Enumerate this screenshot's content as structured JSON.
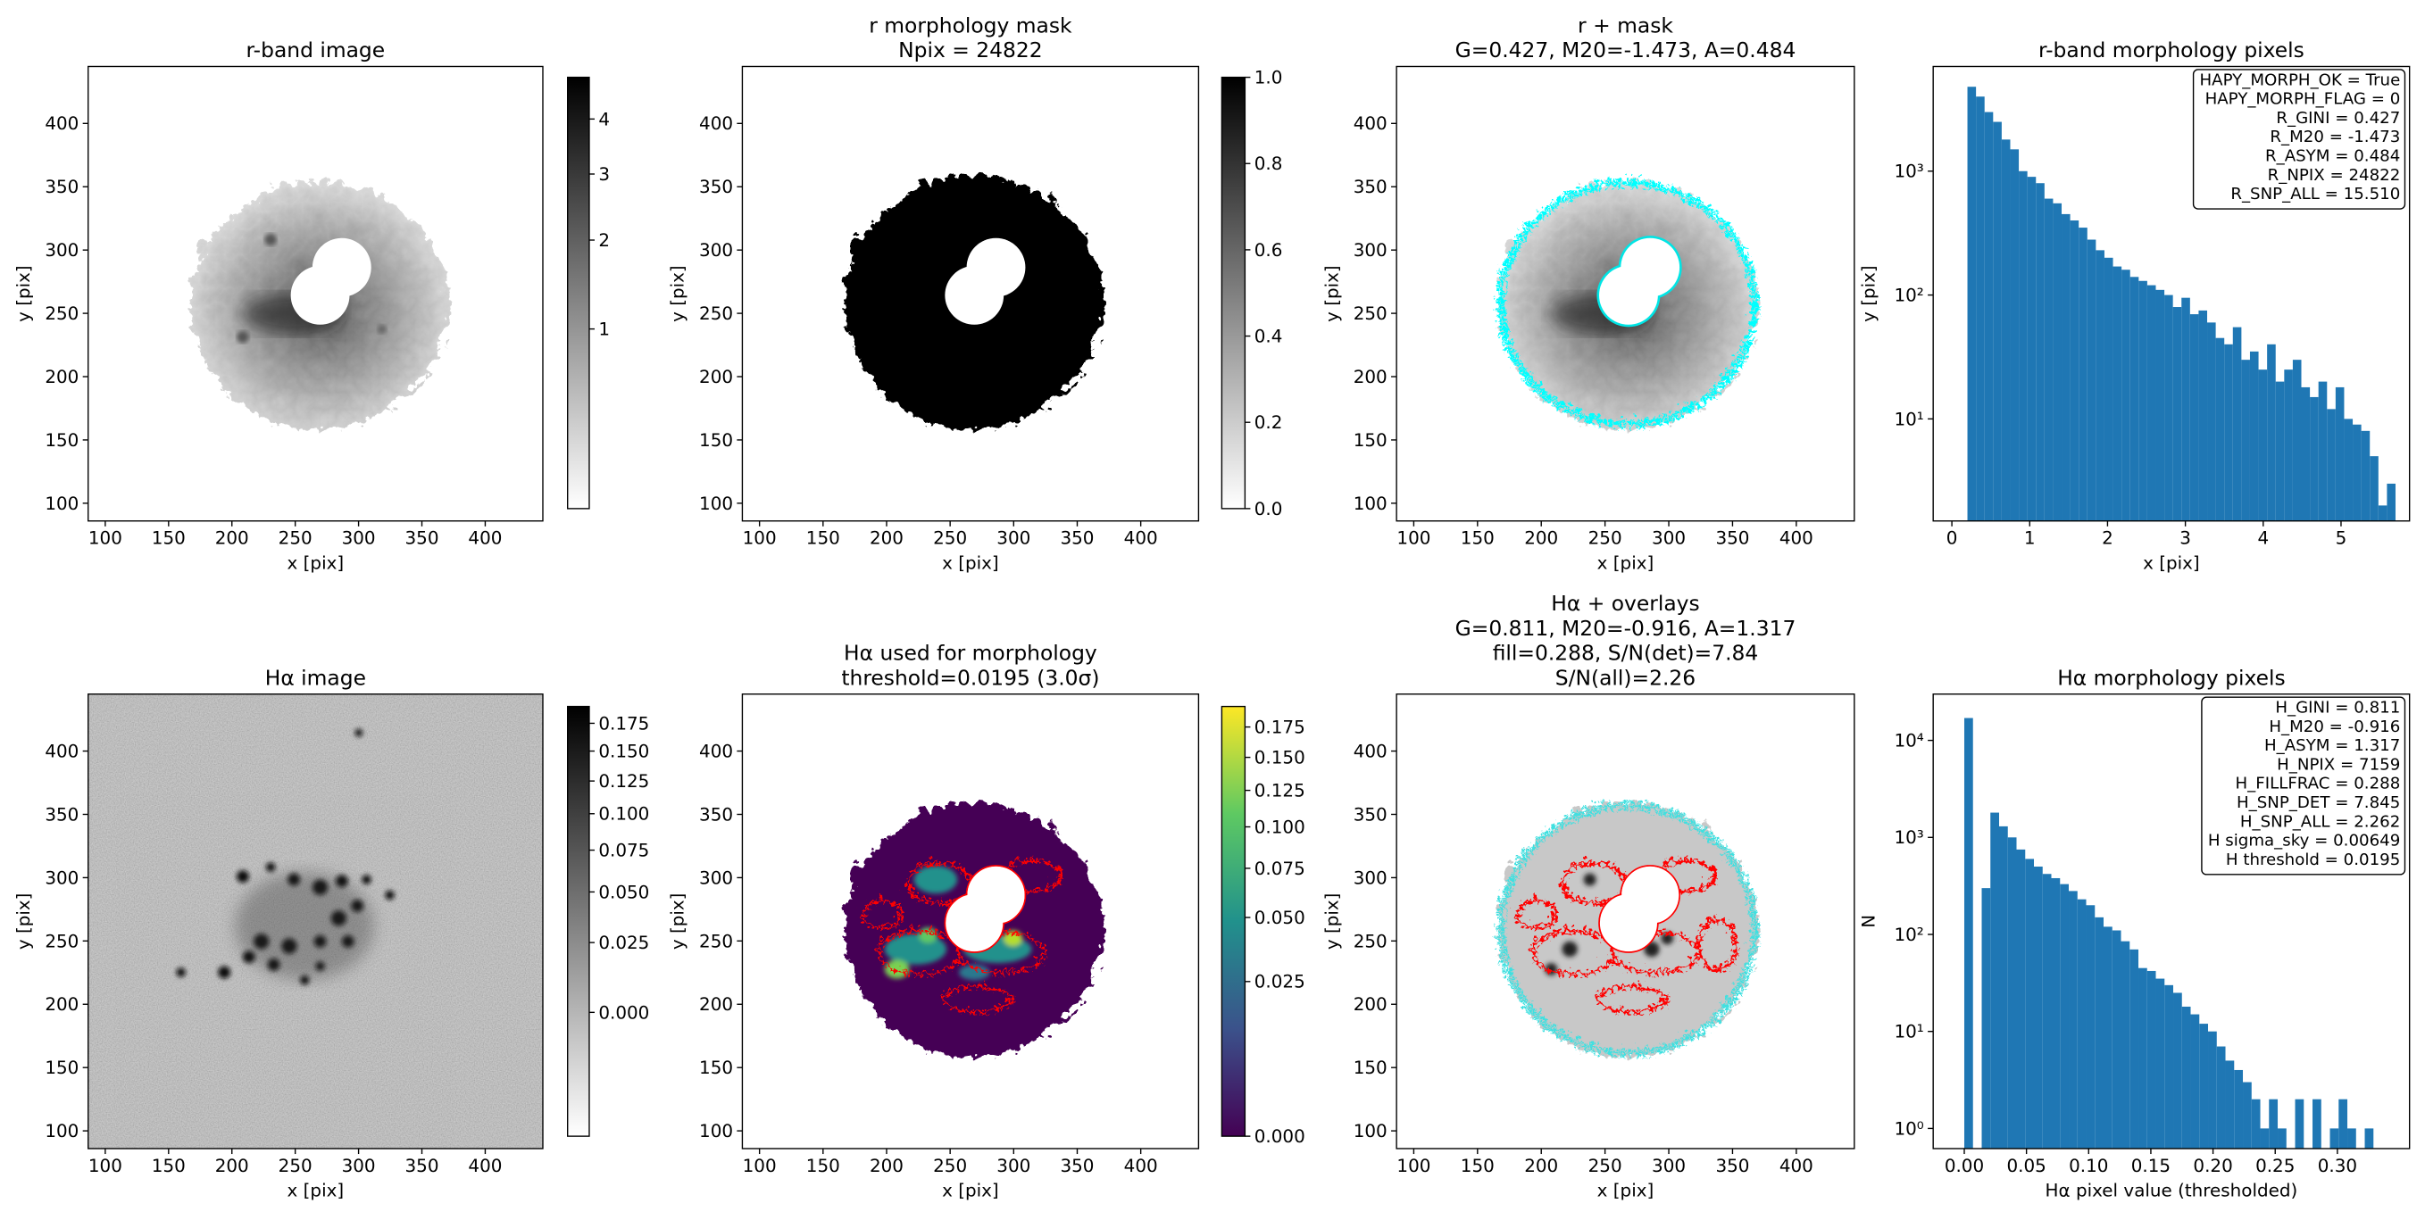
{
  "chart_data": [
    {
      "type": "image",
      "title": [
        "r-band image"
      ],
      "xlabel": "x [pix]",
      "ylabel": "y [pix]",
      "xlim": [
        86.5,
        445.5
      ],
      "ylim": [
        86,
        445
      ],
      "xticks": [
        100,
        150,
        200,
        250,
        300,
        350,
        400
      ],
      "yticks": [
        100,
        150,
        200,
        250,
        300,
        350,
        400
      ],
      "colorbar": {
        "cmap": "gray_r",
        "stretch": "sqrt",
        "lim": [
          0.19,
          4.86
        ],
        "ticks": [
          1,
          2,
          3,
          4
        ]
      }
    },
    {
      "type": "image",
      "title": [
        "r morphology mask",
        "Npix = 24822"
      ],
      "xlabel": "x [pix]",
      "ylabel": "y [pix]",
      "xlim": [
        86.5,
        445.5
      ],
      "ylim": [
        86,
        445
      ],
      "xticks": [
        100,
        150,
        200,
        250,
        300,
        350,
        400
      ],
      "yticks": [
        100,
        150,
        200,
        250,
        300,
        350,
        400
      ],
      "colorbar": {
        "cmap": "gray_r",
        "stretch": "linear",
        "lim": [
          0,
          1
        ],
        "ticks": [
          {
            "value": 0,
            "label": "0.0"
          },
          0.2,
          0.4,
          0.6,
          0.8,
          {
            "value": 1,
            "label": "1.0"
          }
        ]
      }
    },
    {
      "type": "image",
      "title": [
        "r + mask",
        "G=0.427, M20=-1.473, A=0.484"
      ],
      "xlabel": "x [pix]",
      "ylabel": "y [pix]",
      "xlim": [
        86.5,
        445.5
      ],
      "ylim": [
        86,
        445
      ],
      "xticks": [
        100,
        150,
        200,
        250,
        300,
        350,
        400
      ],
      "yticks": [
        100,
        150,
        200,
        250,
        300,
        350,
        400
      ]
    },
    {
      "type": "histogram",
      "title": [
        "r-band morphology pixels"
      ],
      "xlabel": "x [pix]",
      "ylabel": "y [pix]",
      "color": "#1f77b4",
      "ylog": true,
      "xlim": [
        -0.24,
        5.88
      ],
      "xticks": [
        0,
        1,
        2,
        3,
        4,
        5
      ],
      "ylim": [
        1.5,
        7000
      ],
      "yticks": [
        {
          "value": 10,
          "label": "10¹"
        },
        {
          "value": 100,
          "label": "10²"
        },
        {
          "value": 1000,
          "label": "10³"
        }
      ],
      "bins": [
        0.2,
        0.31,
        0.42,
        0.53,
        0.64,
        0.75,
        0.86,
        0.97,
        1.08,
        1.19,
        1.3,
        1.41,
        1.52,
        1.63,
        1.74,
        1.85,
        1.96,
        2.07,
        2.18,
        2.29,
        2.4,
        2.51,
        2.62,
        2.73,
        2.84,
        2.95,
        3.06,
        3.17,
        3.28,
        3.39,
        3.5,
        3.61,
        3.72,
        3.83,
        3.94,
        4.05,
        4.16,
        4.27,
        4.38,
        4.49,
        4.6,
        4.71,
        4.82,
        4.93,
        5.04,
        5.15,
        5.26,
        5.37,
        5.48,
        5.59,
        5.7
      ],
      "values": [
        4800,
        4000,
        3000,
        2500,
        1800,
        1500,
        1000,
        900,
        800,
        600,
        550,
        450,
        400,
        350,
        280,
        230,
        200,
        170,
        160,
        140,
        130,
        120,
        110,
        100,
        80,
        95,
        70,
        75,
        60,
        45,
        40,
        55,
        30,
        35,
        25,
        40,
        20,
        25,
        30,
        18,
        15,
        20,
        12,
        18,
        10,
        9,
        8,
        5,
        2,
        3
      ],
      "annotation": [
        "HAPY_MORPH_OK = True",
        "HAPY_MORPH_FLAG = 0",
        "R_GINI = 0.427",
        "R_M20 = -1.473",
        "R_ASYM = 0.484",
        "R_NPIX = 24822",
        "R_SNP_ALL = 15.510"
      ]
    },
    {
      "type": "image",
      "title": [
        "Hα image"
      ],
      "xlabel": "x [pix]",
      "ylabel": "y [pix]",
      "xlim": [
        86.5,
        445.5
      ],
      "ylim": [
        86,
        445
      ],
      "xticks": [
        100,
        150,
        200,
        250,
        300,
        350,
        400
      ],
      "yticks": [
        100,
        150,
        200,
        250,
        300,
        350,
        400
      ],
      "colorbar": {
        "cmap": "gray_r",
        "stretch": "sqrt",
        "lim": [
          -0.0173,
          0.191
        ],
        "ticks": [
          {
            "value": 0,
            "label": "0.000"
          },
          0.025,
          {
            "value": 0.05,
            "label": "0.050"
          },
          0.075,
          {
            "value": 0.1,
            "label": "0.100"
          },
          0.125,
          {
            "value": 0.15,
            "label": "0.150"
          },
          0.175
        ]
      }
    },
    {
      "type": "image",
      "title": [
        "Hα used for morphology",
        "threshold=0.0195 (3.0σ)"
      ],
      "xlabel": "x [pix]",
      "ylabel": "y [pix]",
      "xlim": [
        86.5,
        445.5
      ],
      "ylim": [
        86,
        445
      ],
      "xticks": [
        100,
        150,
        200,
        250,
        300,
        350,
        400
      ],
      "yticks": [
        100,
        150,
        200,
        250,
        300,
        350,
        400
      ],
      "colorbar": {
        "cmap": "viridis",
        "stretch": "sqrt",
        "lim": [
          0,
          0.193
        ],
        "ticks": [
          {
            "value": 0,
            "label": "0.000"
          },
          0.025,
          {
            "value": 0.05,
            "label": "0.050"
          },
          0.075,
          {
            "value": 0.1,
            "label": "0.100"
          },
          0.125,
          {
            "value": 0.15,
            "label": "0.150"
          },
          0.175
        ]
      }
    },
    {
      "type": "image",
      "title": [
        "Hα + overlays",
        "G=0.811, M20=-0.916, A=1.317",
        "fill=0.288, S/N(det)=7.84",
        "S/N(all)=2.26"
      ],
      "xlabel": "x [pix]",
      "ylabel": "y [pix]",
      "xlim": [
        86.5,
        445.5
      ],
      "ylim": [
        86,
        445
      ],
      "xticks": [
        100,
        150,
        200,
        250,
        300,
        350,
        400
      ],
      "yticks": [
        100,
        150,
        200,
        250,
        300,
        350,
        400
      ]
    },
    {
      "type": "histogram",
      "title": [
        "Hα morphology pixels"
      ],
      "xlabel": "Hα pixel value (thresholded)",
      "ylabel": "N",
      "color": "#1f77b4",
      "ylog": true,
      "xlim": [
        -0.025,
        0.358
      ],
      "xticks": [
        {
          "value": 0,
          "label": "0.00"
        },
        {
          "value": 0.05,
          "label": "0.05"
        },
        {
          "value": 0.1,
          "label": "0.10"
        },
        {
          "value": 0.15,
          "label": "0.15"
        },
        {
          "value": 0.2,
          "label": "0.20"
        },
        {
          "value": 0.25,
          "label": "0.25"
        },
        {
          "value": 0.3,
          "label": "0.30"
        }
      ],
      "ylim": [
        0.62,
        30000
      ],
      "yticks": [
        {
          "value": 1,
          "label": "10⁰"
        },
        {
          "value": 10,
          "label": "10¹"
        },
        {
          "value": 100,
          "label": "10²"
        },
        {
          "value": 1000,
          "label": "10³"
        },
        {
          "value": 10000,
          "label": "10⁴"
        }
      ],
      "bins": [
        0,
        0.007,
        0.014,
        0.021,
        0.028,
        0.035,
        0.042,
        0.049,
        0.056,
        0.063,
        0.07,
        0.077,
        0.084,
        0.091,
        0.098,
        0.105,
        0.112,
        0.119,
        0.126,
        0.133,
        0.14,
        0.147,
        0.154,
        0.161,
        0.168,
        0.175,
        0.182,
        0.189,
        0.196,
        0.203,
        0.21,
        0.217,
        0.224,
        0.231,
        0.238,
        0.245,
        0.252,
        0.259,
        0.266,
        0.273,
        0.28,
        0.287,
        0.294,
        0.301,
        0.308,
        0.315,
        0.322,
        0.329
      ],
      "values": [
        17000,
        0,
        300,
        1800,
        1300,
        1000,
        750,
        600,
        500,
        420,
        380,
        330,
        280,
        230,
        200,
        150,
        120,
        110,
        85,
        70,
        45,
        42,
        35,
        30,
        25,
        18,
        15,
        12,
        10,
        7,
        5,
        4,
        3,
        2,
        1,
        2,
        1,
        0,
        2,
        0,
        2,
        0,
        1,
        2,
        1,
        0,
        1
      ],
      "annotation": [
        "H_GINI = 0.811",
        "H_M20 = -0.916",
        "H_ASYM = 1.317",
        "H_NPIX = 7159",
        "H_FILLFRAC = 0.288",
        "H_SNP_DET = 7.845",
        "H_SNP_ALL = 2.262",
        "H sigma_sky = 0.00649",
        "H threshold = 0.0195"
      ]
    }
  ]
}
